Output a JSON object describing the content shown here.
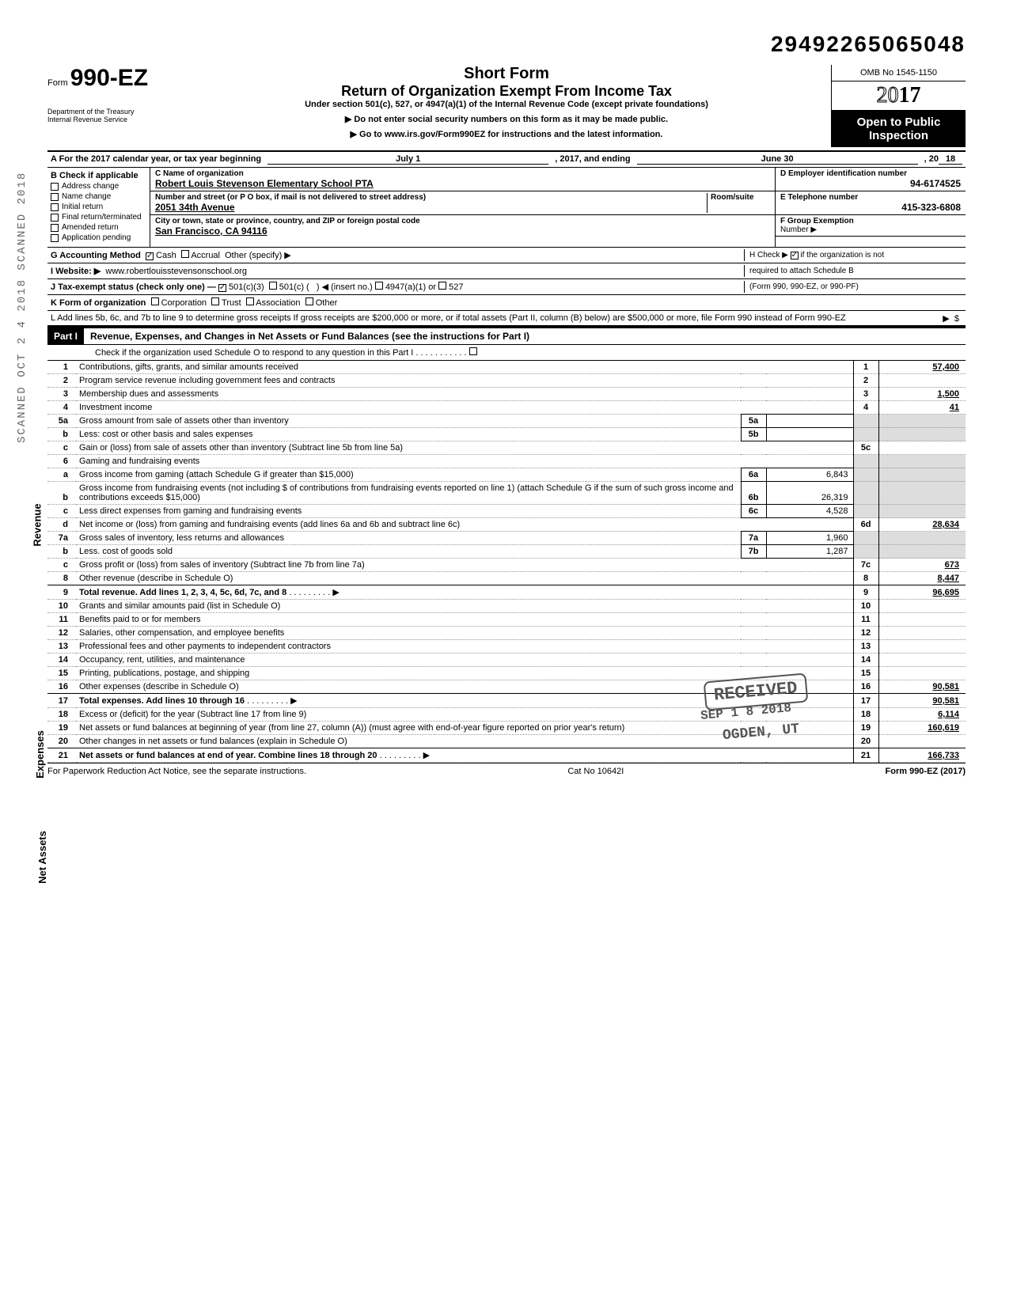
{
  "doc_id": "29492265065048",
  "form": {
    "number_prefix": "Form",
    "number": "990-EZ",
    "dept": "Department of the Treasury\nInternal Revenue Service",
    "short_form": "Short Form",
    "title": "Return of Organization Exempt From Income Tax",
    "subtitle": "Under section 501(c), 527, or 4947(a)(1) of the Internal Revenue Code (except private foundations)",
    "instr1": "▶ Do not enter social security numbers on this form as it may be made public.",
    "instr2": "▶ Go to www.irs.gov/Form990EZ for instructions and the latest information.",
    "omb": "OMB No 1545-1150",
    "year_outline": "20",
    "year_bold": "17",
    "open_public_1": "Open to Public",
    "open_public_2": "Inspection"
  },
  "lineA": {
    "prefix": "A  For the 2017 calendar year, or tax year beginning",
    "begin": "July 1",
    "mid": ", 2017, and ending",
    "end": "June 30",
    "suffix": ", 20",
    "yr": "18"
  },
  "colB": {
    "hdr": "B  Check if applicable",
    "items": [
      "Address change",
      "Name change",
      "Initial return",
      "Final return/terminated",
      "Amended return",
      "Application pending"
    ]
  },
  "colC": {
    "name_lbl": "C  Name of organization",
    "name": "Robert Louis Stevenson Elementary School PTA",
    "addr_lbl": "Number and street (or P O  box, if mail is not delivered to street address)",
    "room_lbl": "Room/suite",
    "addr": "2051 34th Avenue",
    "city_lbl": "City or town, state or province, country, and ZIP or foreign postal code",
    "city": "San Francisco, CA 94116"
  },
  "colD": {
    "ein_lbl": "D Employer identification number",
    "ein": "94-6174525",
    "tel_lbl": "E Telephone number",
    "tel": "415-323-6808",
    "grp_lbl": "F Group Exemption",
    "grp_lbl2": "Number ▶"
  },
  "lineG": {
    "lbl": "G  Accounting Method",
    "cash": "Cash",
    "accrual": "Accrual",
    "other": "Other (specify) ▶"
  },
  "lineH": {
    "txt": "H  Check ▶",
    "txt2": "if the organization is not",
    "txt3": "required to attach Schedule B",
    "txt4": "(Form 990, 990-EZ, or 990-PF)"
  },
  "lineI": {
    "lbl": "I   Website: ▶",
    "val": "www.robertlouisstevensonschool.org"
  },
  "lineJ": {
    "lbl": "J  Tax-exempt status (check only one) —",
    "a": "501(c)(3)",
    "b": "501(c) (",
    "c": ") ◀ (insert no.)",
    "d": "4947(a)(1) or",
    "e": "527"
  },
  "lineK": {
    "lbl": "K  Form of organization",
    "a": "Corporation",
    "b": "Trust",
    "c": "Association",
    "d": "Other"
  },
  "lineL": {
    "txt": "L  Add lines 5b, 6c, and 7b to line 9 to determine gross receipts  If gross receipts are $200,000 or more, or if total assets (Part II, column (B) below) are $500,000 or more, file Form 990 instead of Form 990-EZ",
    "arrow": "▶",
    "dollar": "$"
  },
  "part1": {
    "hdr": "Part I",
    "title": "Revenue, Expenses, and Changes in Net Assets or Fund Balances (see the instructions for Part I)",
    "check_line": "Check if the organization used Schedule O to respond to any question in this Part I"
  },
  "sections": {
    "revenue": "Revenue",
    "expenses": "Expenses",
    "netassets": "Net Assets"
  },
  "rows": [
    {
      "n": "1",
      "desc": "Contributions, gifts, grants, and similar amounts received",
      "rn": "1",
      "rv": "57,400"
    },
    {
      "n": "2",
      "desc": "Program service revenue including government fees and contracts",
      "rn": "2",
      "rv": ""
    },
    {
      "n": "3",
      "desc": "Membership dues and assessments",
      "rn": "3",
      "rv": "1,500"
    },
    {
      "n": "4",
      "desc": "Investment income",
      "rn": "4",
      "rv": "41"
    },
    {
      "n": "5a",
      "desc": "Gross amount from sale of assets other than inventory",
      "mn": "5a",
      "mv": ""
    },
    {
      "n": "b",
      "desc": "Less: cost or other basis and sales expenses",
      "mn": "5b",
      "mv": ""
    },
    {
      "n": "c",
      "desc": "Gain or (loss) from sale of assets other than inventory (Subtract line 5b from line 5a)",
      "rn": "5c",
      "rv": ""
    },
    {
      "n": "6",
      "desc": "Gaming and fundraising events"
    },
    {
      "n": "a",
      "desc": "Gross income from gaming (attach Schedule G if greater than $15,000)",
      "mn": "6a",
      "mv": "6,843"
    },
    {
      "n": "b",
      "desc": "Gross income from fundraising events (not including  $                    of contributions from fundraising events reported on line 1) (attach Schedule G if the sum of such gross income and contributions exceeds $15,000)",
      "mn": "6b",
      "mv": "26,319"
    },
    {
      "n": "c",
      "desc": "Less  direct expenses from gaming and fundraising events",
      "mn": "6c",
      "mv": "4,528"
    },
    {
      "n": "d",
      "desc": "Net income or (loss) from gaming and fundraising events (add lines 6a and 6b and subtract line 6c)",
      "rn": "6d",
      "rv": "28,634"
    },
    {
      "n": "7a",
      "desc": "Gross sales of inventory, less returns and allowances",
      "mn": "7a",
      "mv": "1,960"
    },
    {
      "n": "b",
      "desc": "Less. cost of goods sold",
      "mn": "7b",
      "mv": "1,287"
    },
    {
      "n": "c",
      "desc": "Gross profit or (loss) from sales of inventory (Subtract line 7b from line 7a)",
      "rn": "7c",
      "rv": "673"
    },
    {
      "n": "8",
      "desc": "Other revenue (describe in Schedule O)",
      "rn": "8",
      "rv": "8,447"
    },
    {
      "n": "9",
      "desc": "Total revenue. Add lines 1, 2, 3, 4, 5c, 6d, 7c, and 8",
      "rn": "9",
      "rv": "96,695",
      "bold": true,
      "arrow": true
    },
    {
      "n": "10",
      "desc": "Grants and similar amounts paid (list in Schedule O)",
      "rn": "10",
      "rv": ""
    },
    {
      "n": "11",
      "desc": "Benefits paid to or for members",
      "rn": "11",
      "rv": ""
    },
    {
      "n": "12",
      "desc": "Salaries, other compensation, and employee benefits",
      "rn": "12",
      "rv": ""
    },
    {
      "n": "13",
      "desc": "Professional fees and other payments to independent contractors",
      "rn": "13",
      "rv": ""
    },
    {
      "n": "14",
      "desc": "Occupancy, rent, utilities, and maintenance",
      "rn": "14",
      "rv": ""
    },
    {
      "n": "15",
      "desc": "Printing, publications, postage, and shipping",
      "rn": "15",
      "rv": ""
    },
    {
      "n": "16",
      "desc": "Other expenses (describe in Schedule O)",
      "rn": "16",
      "rv": "90,581"
    },
    {
      "n": "17",
      "desc": "Total expenses. Add lines 10 through 16",
      "rn": "17",
      "rv": "90,581",
      "bold": true,
      "arrow": true
    },
    {
      "n": "18",
      "desc": "Excess or (deficit) for the year (Subtract line 17 from line 9)",
      "rn": "18",
      "rv": "6,114"
    },
    {
      "n": "19",
      "desc": "Net assets or fund balances at beginning of year (from line 27, column (A)) (must agree with end-of-year figure reported on prior year's return)",
      "rn": "19",
      "rv": "160,619"
    },
    {
      "n": "20",
      "desc": "Other changes in net assets or fund balances (explain in Schedule O)",
      "rn": "20",
      "rv": ""
    },
    {
      "n": "21",
      "desc": "Net assets or fund balances at end of year. Combine lines 18 through 20",
      "rn": "21",
      "rv": "166,733",
      "bold": true,
      "arrow": true
    }
  ],
  "stamp": {
    "received": "RECEIVED",
    "date": "SEP 1 8 2018",
    "ogden": "OGDEN, UT"
  },
  "footer": {
    "left": "For Paperwork Reduction Act Notice, see the separate instructions.",
    "mid": "Cat No 10642I",
    "right": "Form 990-EZ (2017)"
  },
  "side": "SCANNED  OCT 2 4 2018  SCANNED  2018"
}
